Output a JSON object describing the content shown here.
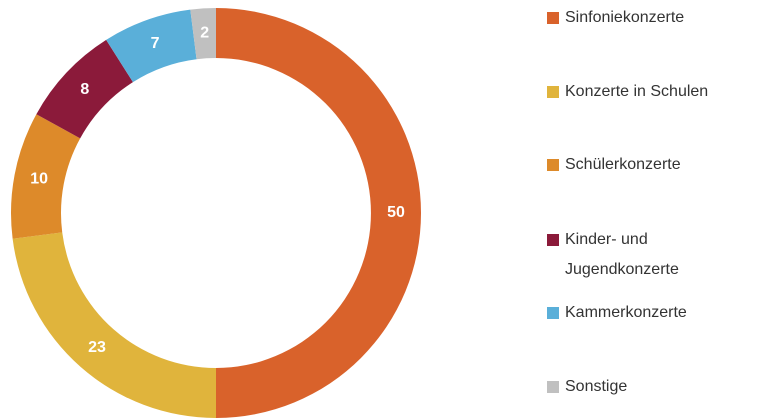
{
  "chart_data": {
    "type": "donut",
    "categories": [
      "Sinfoniekonzerte",
      "Konzerte in Schulen",
      "Schülerkonzerte",
      "Kinder- und Jugendkonzerte",
      "Kammerkonzerte",
      "Sonstige"
    ],
    "values": [
      50,
      23,
      10,
      8,
      7,
      2
    ],
    "colors": [
      "#d9622b",
      "#e0b43c",
      "#dd8a2a",
      "#8b1a3a",
      "#5aafd9",
      "#c0c0c0"
    ],
    "legend": "right"
  }
}
